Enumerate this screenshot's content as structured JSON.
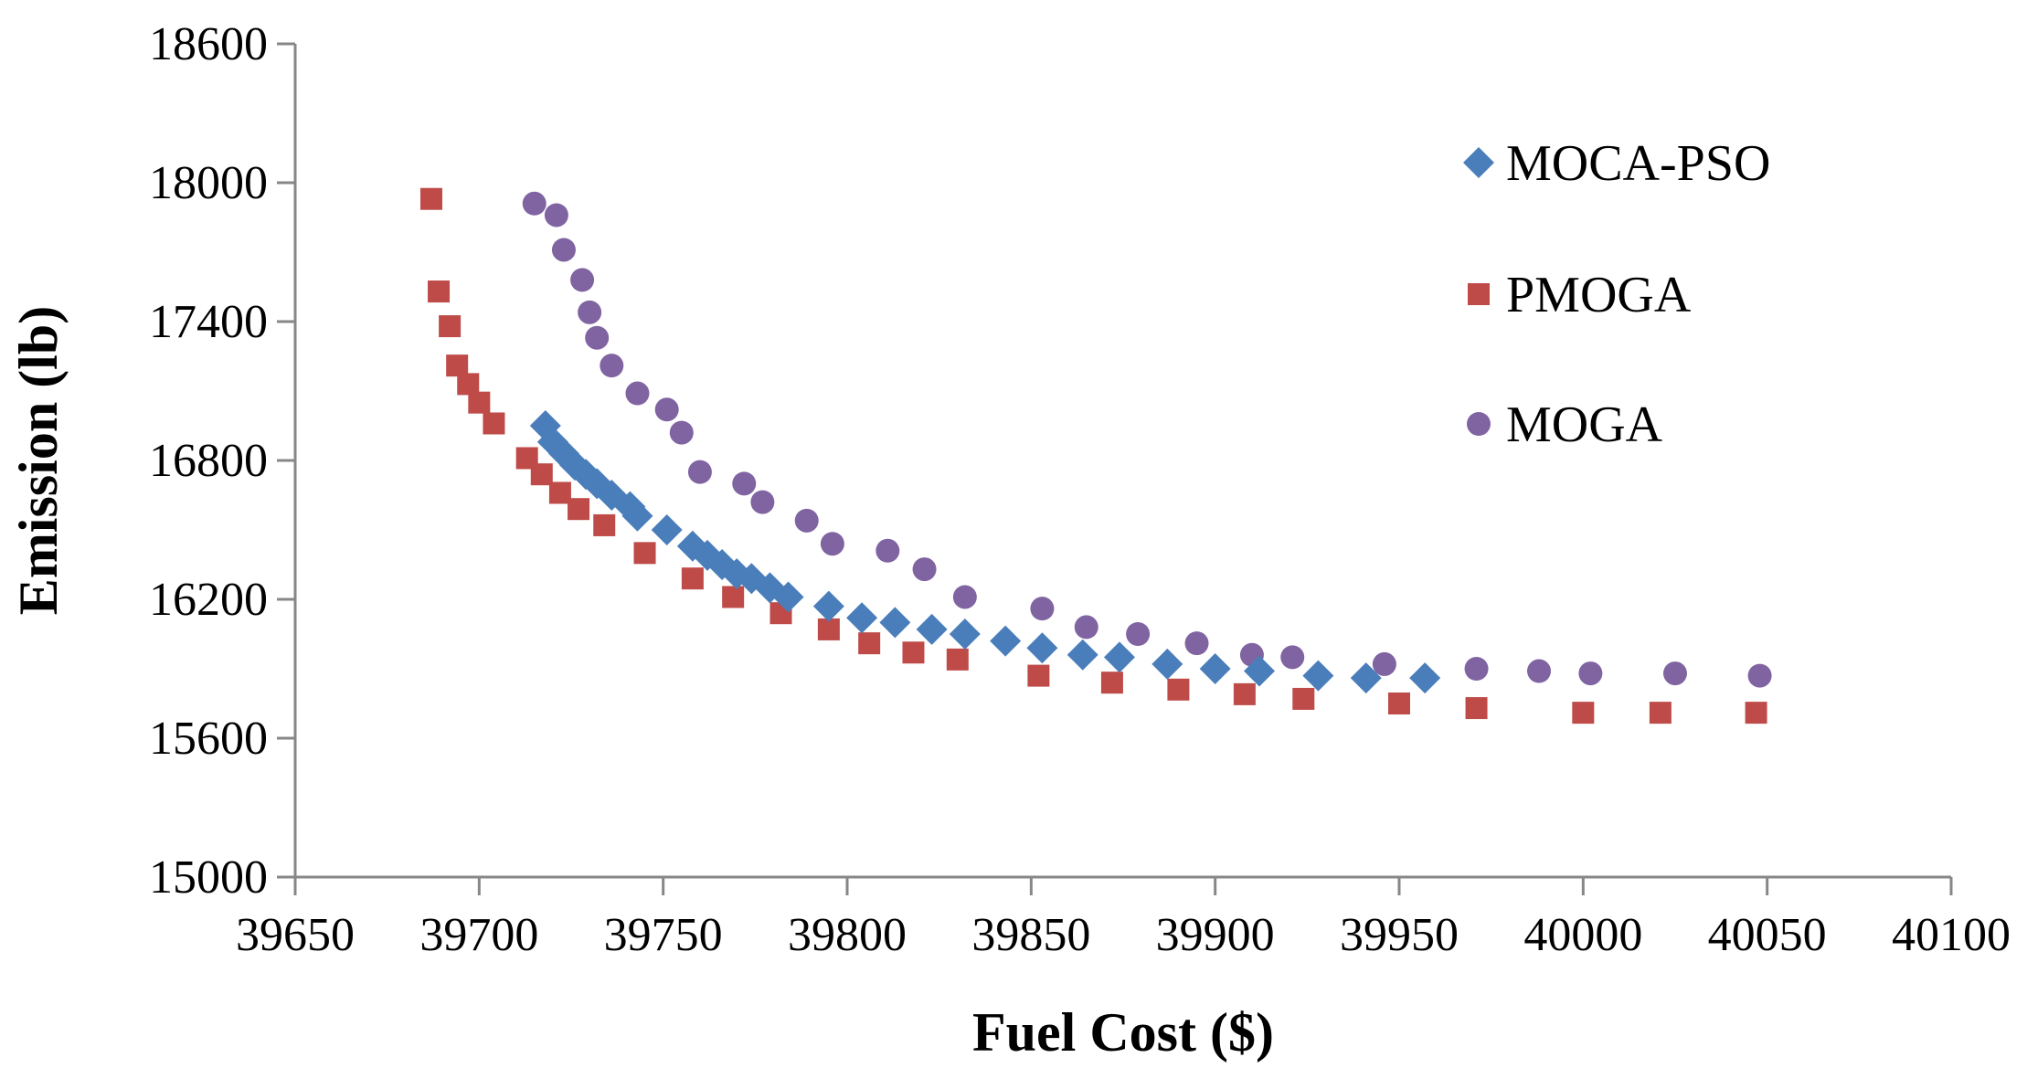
{
  "chart_data": {
    "type": "scatter",
    "title": "",
    "xlabel": "Fuel Cost ($)",
    "ylabel": "Emission (lb)",
    "xlim": [
      39650,
      40100
    ],
    "ylim": [
      15000,
      18600
    ],
    "xticks": [
      39650,
      39700,
      39750,
      39800,
      39850,
      39900,
      39950,
      40000,
      40050,
      40100
    ],
    "yticks": [
      15000,
      15600,
      16200,
      16800,
      17400,
      18000,
      18600
    ],
    "grid": false,
    "legend_position": "top-right",
    "series": [
      {
        "name": "MOCA-PSO",
        "marker": "diamond",
        "color": "#4A7EBB",
        "x": [
          39718,
          39720,
          39723,
          39726,
          39729,
          39732,
          39736,
          39741,
          39743,
          39751,
          39758,
          39762,
          39766,
          39770,
          39774,
          39779,
          39784,
          39795,
          39804,
          39813,
          39823,
          39832,
          39843,
          39853,
          39864,
          39874,
          39887,
          39900,
          39912,
          39928,
          39941,
          39957
        ],
        "y": [
          16950,
          16880,
          16830,
          16780,
          16740,
          16700,
          16650,
          16600,
          16560,
          16500,
          16430,
          16390,
          16350,
          16310,
          16290,
          16250,
          16210,
          16170,
          16120,
          16100,
          16070,
          16050,
          16020,
          15990,
          15960,
          15950,
          15920,
          15900,
          15890,
          15870,
          15860,
          15860
        ]
      },
      {
        "name": "PMOGA",
        "marker": "square",
        "color": "#BE4B48",
        "x": [
          39687,
          39689,
          39692,
          39694,
          39697,
          39700,
          39704,
          39713,
          39717,
          39722,
          39727,
          39734,
          39745,
          39758,
          39769,
          39782,
          39795,
          39806,
          39818,
          39830,
          39852,
          39872,
          39890,
          39908,
          39924,
          39950,
          39971,
          40000,
          40021,
          40047
        ],
        "y": [
          17930,
          17530,
          17380,
          17210,
          17130,
          17050,
          16960,
          16810,
          16740,
          16660,
          16590,
          16520,
          16400,
          16290,
          16210,
          16140,
          16070,
          16010,
          15970,
          15940,
          15870,
          15840,
          15810,
          15790,
          15770,
          15750,
          15730,
          15710,
          15710,
          15710
        ]
      },
      {
        "name": "MOGA",
        "marker": "circle",
        "color": "#8064A2",
        "x": [
          39715,
          39721,
          39723,
          39728,
          39730,
          39732,
          39736,
          39743,
          39751,
          39755,
          39760,
          39772,
          39777,
          39789,
          39796,
          39811,
          39821,
          39832,
          39853,
          39865,
          39879,
          39895,
          39910,
          39921,
          39946,
          39971,
          39988,
          40002,
          40025,
          40048
        ],
        "y": [
          17910,
          17860,
          17710,
          17580,
          17440,
          17330,
          17210,
          17090,
          17020,
          16920,
          16750,
          16700,
          16620,
          16540,
          16440,
          16410,
          16330,
          16210,
          16160,
          16080,
          16050,
          16010,
          15960,
          15950,
          15920,
          15900,
          15890,
          15880,
          15880,
          15870
        ]
      }
    ]
  }
}
